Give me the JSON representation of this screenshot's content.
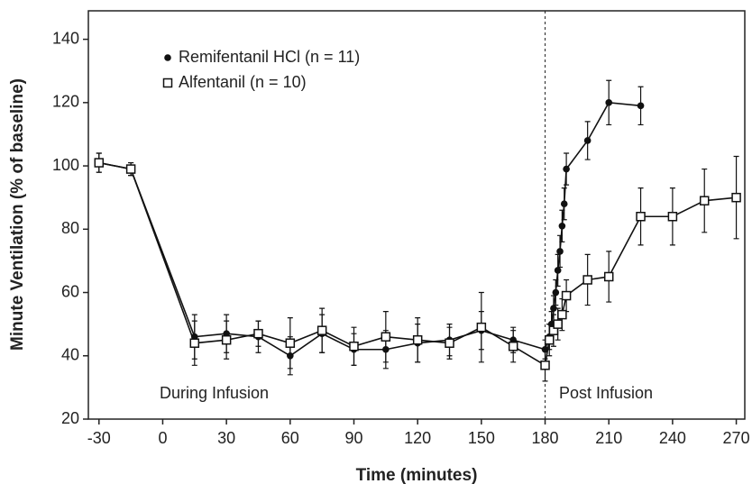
{
  "chart_data": {
    "type": "line",
    "x_label": "Time (minutes)",
    "y_label": "Minute Ventilation (% of baseline)",
    "xlim": [
      -35,
      274
    ],
    "ylim": [
      20,
      149
    ],
    "xticks": [
      -30,
      0,
      30,
      60,
      90,
      120,
      150,
      180,
      210,
      240,
      270
    ],
    "yticks": [
      20,
      40,
      60,
      80,
      100,
      120,
      140
    ],
    "grid": false,
    "legend": "upper left",
    "vline": 180,
    "annotations": [
      "During Infusion",
      "Post Infusion"
    ],
    "series": [
      {
        "name": "Remifentanil HCl (n = 11)",
        "marker": "filled-circle",
        "color": "#111111",
        "x": [
          -30,
          -15,
          15,
          30,
          45,
          60,
          75,
          90,
          105,
          120,
          135,
          150,
          165,
          180,
          182,
          183,
          184,
          185,
          186,
          187,
          188,
          189,
          190,
          200,
          210,
          225
        ],
        "values": [
          101,
          99,
          46,
          47,
          46,
          40,
          47,
          42,
          42,
          44,
          45,
          48,
          45,
          42,
          46,
          50,
          55,
          60,
          67,
          73,
          81,
          88,
          99,
          108,
          120,
          119
        ],
        "errors": [
          3,
          2,
          7,
          6,
          5,
          6,
          6,
          5,
          6,
          6,
          5,
          6,
          4,
          3,
          4,
          4,
          4,
          4,
          5,
          5,
          5,
          5,
          5,
          6,
          7,
          6
        ]
      },
      {
        "name": "Alfentanil (n = 10)",
        "marker": "open-square",
        "color": "#111111",
        "x": [
          -30,
          -15,
          15,
          30,
          45,
          60,
          75,
          90,
          105,
          120,
          135,
          150,
          165,
          180,
          182,
          184,
          186,
          188,
          190,
          200,
          210,
          225,
          240,
          255,
          270
        ],
        "values": [
          101,
          99,
          44,
          45,
          47,
          44,
          48,
          43,
          46,
          45,
          44,
          49,
          43,
          37,
          45,
          48,
          50,
          53,
          59,
          64,
          65,
          84,
          84,
          89,
          90
        ],
        "errors": [
          3,
          2,
          7,
          6,
          4,
          8,
          7,
          6,
          8,
          7,
          5,
          11,
          5,
          5,
          5,
          5,
          5,
          5,
          5,
          8,
          8,
          9,
          9,
          10,
          13
        ]
      }
    ]
  }
}
